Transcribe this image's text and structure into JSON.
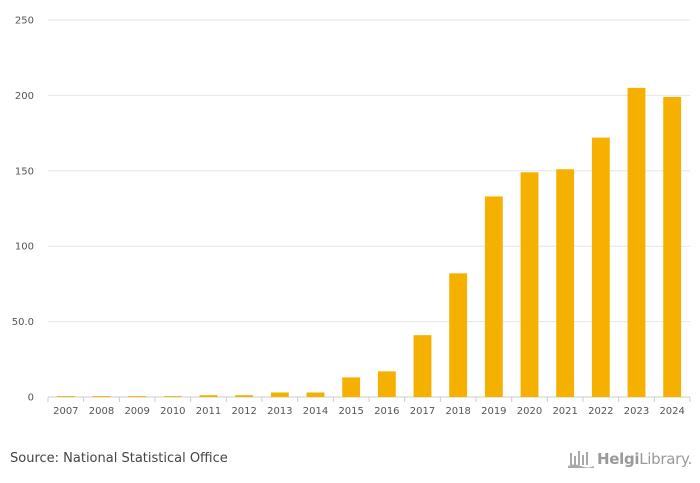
{
  "chart_data": {
    "type": "bar",
    "title": "",
    "xlabel": "",
    "ylabel": "",
    "categories": [
      "2007",
      "2008",
      "2009",
      "2010",
      "2011",
      "2012",
      "2013",
      "2014",
      "2015",
      "2016",
      "2017",
      "2018",
      "2019",
      "2020",
      "2021",
      "2022",
      "2023",
      "2024"
    ],
    "values": [
      0.6,
      0.6,
      0.6,
      0.6,
      1.2,
      1.2,
      3.0,
      3.0,
      13.0,
      17.0,
      41.0,
      82.0,
      133.0,
      149.0,
      151.0,
      172.0,
      205.0,
      199.0
    ],
    "ylim": [
      0,
      250
    ],
    "yticks": [
      0,
      50,
      100,
      150,
      200,
      250
    ],
    "ytick_labels": [
      "0",
      "50.0",
      "100",
      "150",
      "200",
      "250"
    ],
    "grid": true,
    "bar_color": "#f5b000",
    "grid_color": "#e6e6e6",
    "axis_color": "#cccccc"
  },
  "footer": {
    "source": "Source: National Statistical Office",
    "brand_strong": "Helgi",
    "brand_light": "Library."
  }
}
